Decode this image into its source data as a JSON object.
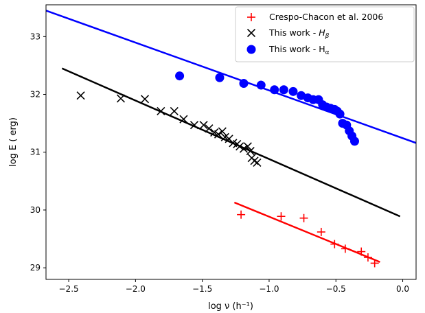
{
  "chart_data": {
    "type": "scatter",
    "xlabel": "log ν (h⁻¹)",
    "ylabel": "log E ( erg)",
    "xlim": [
      -2.67,
      0.1
    ],
    "ylim": [
      28.8,
      33.55
    ],
    "xticks": [
      -2.5,
      -2.0,
      -1.5,
      -1.0,
      -0.5,
      0.0
    ],
    "xtick_labels": [
      "−2.5",
      "−2.0",
      "−1.5",
      "−1.0",
      "−0.5",
      "0.0"
    ],
    "yticks": [
      29,
      30,
      31,
      32,
      33
    ],
    "ytick_labels": [
      "29",
      "30",
      "31",
      "32",
      "33"
    ],
    "grid": false,
    "legend_position": "top-right",
    "series": [
      {
        "name": "Crespo-Chacon et al. 2006",
        "color": "#ff0000",
        "marker": "plus",
        "points": [
          [
            -1.21,
            29.92
          ],
          [
            -0.91,
            29.89
          ],
          [
            -0.74,
            29.86
          ],
          [
            -0.61,
            29.62
          ],
          [
            -0.51,
            29.41
          ],
          [
            -0.43,
            29.33
          ],
          [
            -0.31,
            29.28
          ],
          [
            -0.26,
            29.18
          ],
          [
            -0.21,
            29.08
          ]
        ],
        "fit": [
          [
            -1.26,
            30.13
          ],
          [
            -0.17,
            29.1
          ]
        ]
      },
      {
        "name": "This work - Hβ",
        "name_main": "This work - ",
        "name_sym": "H",
        "name_sub": "β",
        "color": "#000000",
        "marker": "x",
        "points": [
          [
            -2.41,
            31.98
          ],
          [
            -2.11,
            31.93
          ],
          [
            -1.93,
            31.92
          ],
          [
            -1.81,
            31.71
          ],
          [
            -1.71,
            31.71
          ],
          [
            -1.64,
            31.57
          ],
          [
            -1.56,
            31.47
          ],
          [
            -1.49,
            31.47
          ],
          [
            -1.45,
            31.41
          ],
          [
            -1.41,
            31.34
          ],
          [
            -1.38,
            31.31
          ],
          [
            -1.35,
            31.36
          ],
          [
            -1.33,
            31.26
          ],
          [
            -1.3,
            31.23
          ],
          [
            -1.27,
            31.16
          ],
          [
            -1.24,
            31.14
          ],
          [
            -1.22,
            31.1
          ],
          [
            -1.19,
            31.06
          ],
          [
            -1.16,
            31.1
          ],
          [
            -1.14,
            31.02
          ],
          [
            -1.13,
            30.9
          ],
          [
            -1.11,
            30.85
          ],
          [
            -1.09,
            30.82
          ]
        ],
        "fit": [
          [
            -2.55,
            32.45
          ],
          [
            -0.02,
            29.89
          ]
        ]
      },
      {
        "name": "This work - Hα",
        "name_main": "This work - H",
        "name_sub": "α",
        "color": "#0000ff",
        "marker": "circle",
        "points": [
          [
            -1.67,
            32.32
          ],
          [
            -1.37,
            32.29
          ],
          [
            -1.19,
            32.19
          ],
          [
            -1.06,
            32.16
          ],
          [
            -0.96,
            32.08
          ],
          [
            -0.89,
            32.08
          ],
          [
            -0.82,
            32.05
          ],
          [
            -0.76,
            31.98
          ],
          [
            -0.71,
            31.94
          ],
          [
            -0.67,
            31.91
          ],
          [
            -0.63,
            31.91
          ],
          [
            -0.6,
            31.82
          ],
          [
            -0.57,
            31.78
          ],
          [
            -0.54,
            31.76
          ],
          [
            -0.51,
            31.74
          ],
          [
            -0.49,
            31.71
          ],
          [
            -0.47,
            31.66
          ],
          [
            -0.45,
            31.5
          ],
          [
            -0.42,
            31.47
          ],
          [
            -0.4,
            31.37
          ],
          [
            -0.38,
            31.28
          ],
          [
            -0.36,
            31.19
          ]
        ],
        "fit": [
          [
            -2.67,
            33.45
          ],
          [
            0.1,
            31.16
          ]
        ]
      }
    ]
  }
}
